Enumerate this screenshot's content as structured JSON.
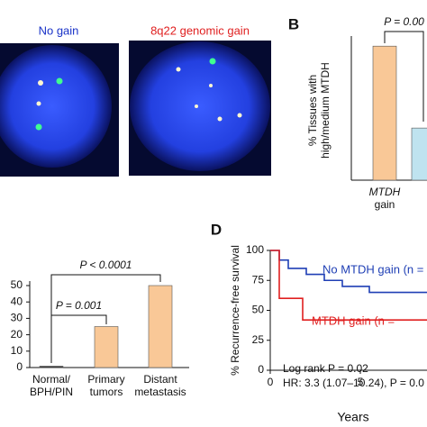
{
  "panel_a": {
    "left_label": "No gain",
    "right_label": "8q22 genomic gain"
  },
  "panel_labels": {
    "b": "B",
    "d": "D"
  },
  "chart_data": [
    {
      "type": "bar",
      "ylabel": [
        "% Tissues with",
        "high/medium MTDH"
      ],
      "categories": [
        [
          "MTDH",
          "gain"
        ],
        null
      ],
      "values": [
        72,
        28
      ],
      "colors": [
        "#f9c897",
        "#bfe3ef"
      ],
      "ylim": [
        0,
        75
      ],
      "annotations": [
        "P = 0.00"
      ]
    },
    {
      "type": "bar",
      "categories": [
        [
          "Normal/",
          "BPH/PIN"
        ],
        [
          "Primary",
          "tumors"
        ],
        [
          "Distant",
          "metastasis"
        ]
      ],
      "values": [
        0.5,
        25,
        50
      ],
      "colors": [
        "#333333",
        "#f9c897",
        "#f9c897"
      ],
      "ylim": [
        0,
        50
      ],
      "yticks": [
        0,
        10,
        20,
        30,
        40,
        50
      ],
      "annotations": [
        "P = 0.001",
        "P < 0.0001"
      ]
    },
    {
      "type": "line",
      "ylabel": "% Recurrence-free survival",
      "xlabel": "Years",
      "xlim": [
        0,
        10
      ],
      "xticks": [
        0,
        5
      ],
      "ylim": [
        0,
        100
      ],
      "yticks": [
        0,
        25,
        50,
        75,
        100
      ],
      "series": [
        {
          "name": "No MTDH gain (n =",
          "color": "#1f3fb5",
          "x": [
            0,
            0.5,
            0.5,
            1,
            1,
            2,
            2,
            3,
            3,
            4,
            4,
            5.5,
            5.5,
            10
          ],
          "values": [
            100,
            100,
            92,
            92,
            85,
            85,
            80,
            80,
            75,
            75,
            70,
            70,
            65,
            65
          ]
        },
        {
          "name": "MTDH gain (n =",
          "color": "#e02020",
          "x": [
            0,
            0.5,
            0.5,
            1.8,
            1.8,
            10
          ],
          "values": [
            100,
            100,
            60,
            60,
            42,
            42
          ]
        }
      ],
      "annotations": [
        "Log rank P = 0.02",
        "HR: 3.3 (1.07–10.24), P = 0.0"
      ]
    }
  ]
}
